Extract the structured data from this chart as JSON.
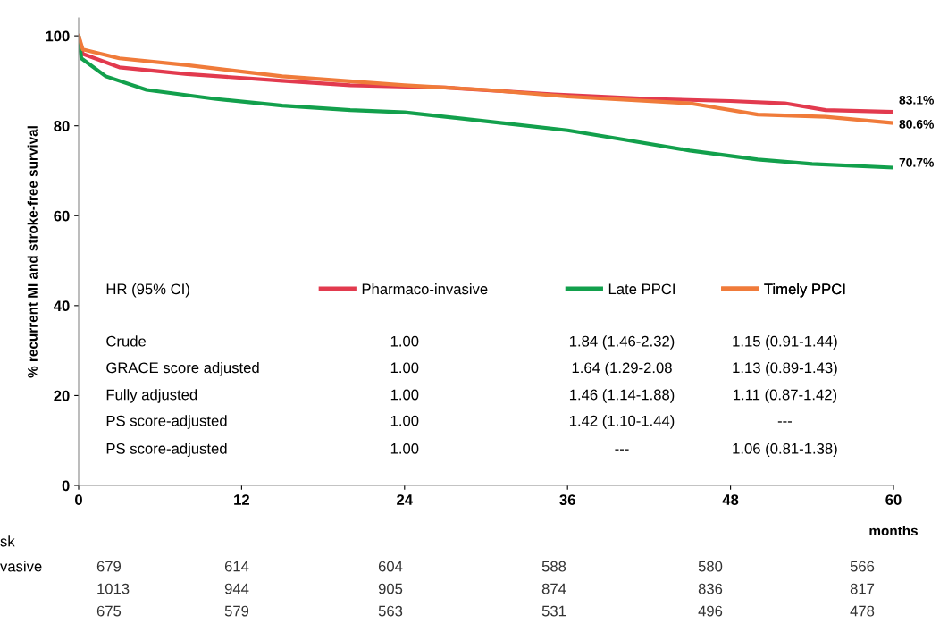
{
  "chart_data": {
    "type": "line",
    "ylabel": "% recurrent MI and stroke-free survival",
    "xlabel": "months",
    "xlim": [
      0,
      60
    ],
    "xticks": [
      0,
      12,
      24,
      36,
      48,
      60
    ],
    "ylim": [
      0,
      104
    ],
    "yticks": [
      0,
      20,
      40,
      60,
      80,
      100
    ],
    "grid": false,
    "legend": "center",
    "marker": "none",
    "line_style": "solid",
    "series": [
      {
        "name": "Pharmaco-invasive",
        "color": "#e23a4e",
        "x": [
          0,
          0.3,
          3,
          8,
          15,
          20,
          27,
          35,
          42,
          48,
          52,
          55,
          60
        ],
        "values": [
          100,
          96,
          93,
          91.5,
          90,
          89,
          88.5,
          87,
          86,
          85.5,
          85,
          83.5,
          83.1
        ]
      },
      {
        "name": "Late PPCI",
        "color": "#12a04c",
        "x": [
          0,
          0.2,
          2,
          5,
          10,
          15,
          20,
          24,
          30,
          36,
          40,
          45,
          50,
          54,
          60
        ],
        "values": [
          100,
          95,
          91,
          88,
          86,
          84.5,
          83.5,
          83,
          81,
          79,
          77,
          74.5,
          72.5,
          71.5,
          70.7
        ]
      },
      {
        "name": "Timely PPCI",
        "color": "#f07b3a",
        "x": [
          0,
          0.3,
          3,
          8,
          15,
          24,
          30,
          36,
          45,
          50,
          55,
          60
        ],
        "values": [
          100,
          97,
          95,
          93.5,
          91,
          89,
          88,
          86.5,
          85,
          82.5,
          82,
          80.6
        ]
      }
    ],
    "annotations": [
      "83.1%",
      "80.6%",
      "70.7%",
      "HR (95% CI)",
      "Crude",
      "1.00",
      "1.84 (1.46-2.32)",
      "1.15 (0.91-1.44)",
      "GRACE score adjusted",
      "1.00",
      "1.64 (1.29-2.08",
      "1.13 (0.89-1.43)",
      "Fully adjusted",
      "1.00",
      "1.46 (1.14-1.88)",
      "1.11 (0.87-1.42)",
      "PS score-adjusted",
      "1.00",
      "1.42 (1.10-1.44)",
      "---",
      "PS score-adjusted",
      "1.00",
      "---",
      "1.06 (0.81-1.38)",
      "sk",
      "vasive",
      "679",
      "614",
      "604",
      "588",
      "580",
      "566",
      "1013",
      "944",
      "905",
      "874",
      "836",
      "817",
      "675",
      "579",
      "563",
      "531",
      "496",
      "478"
    ]
  }
}
